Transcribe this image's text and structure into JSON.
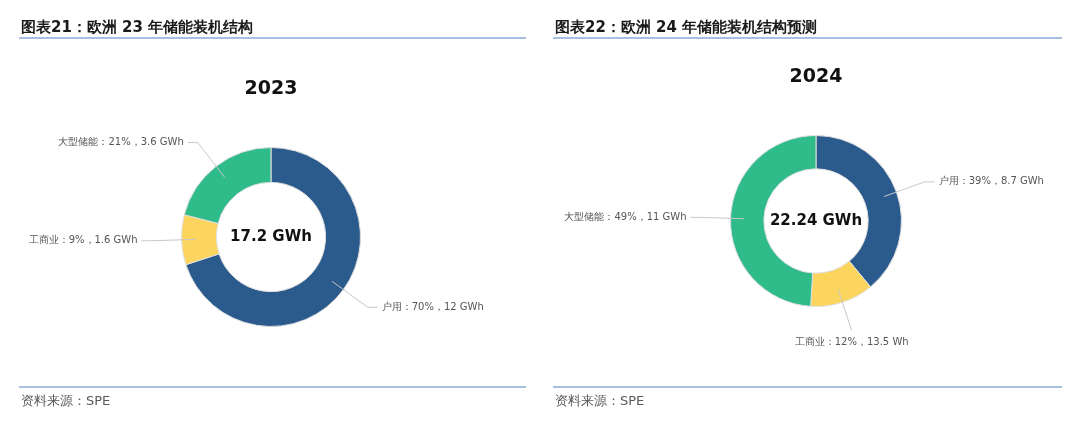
{
  "chart_data": [
    {
      "type": "donut",
      "title": "图表21：欧洲 23 年储能装机结构",
      "subtitle": "2023",
      "categories": [
        "户用",
        "工商业",
        "大型储能"
      ],
      "values": [
        70,
        9,
        21
      ],
      "colors": [
        "#2b5a8c",
        "#fcd55f",
        "#2fbb8a"
      ],
      "value_labels": [
        "70%，12 GWh",
        "9%，1.6 GWh",
        "21%，3.6 GWh"
      ],
      "annotations": [
        "17.2 GWh",
        "资料来源：SPE"
      ],
      "legend": false
    },
    {
      "type": "donut",
      "title": "图表22：欧洲 24 年储能装机结构预测",
      "subtitle": "2024",
      "categories": [
        "户用",
        "工商业",
        "大型储能"
      ],
      "values": [
        39,
        12,
        49
      ],
      "colors": [
        "#2b5a8c",
        "#fcd55f",
        "#2fbb8a"
      ],
      "value_labels": [
        "39%，8.7 GWh",
        "12%，13.5 Wh",
        "49%，11 GWh"
      ],
      "annotations": [
        "22.24 GWh",
        "资料来源：SPE"
      ],
      "legend": false
    }
  ]
}
